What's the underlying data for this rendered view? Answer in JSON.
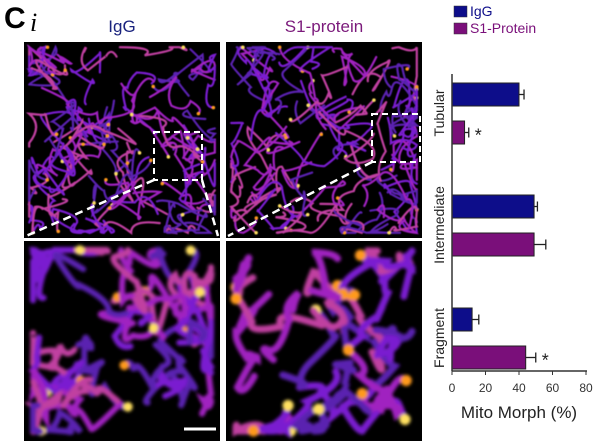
{
  "figure": {
    "panel_letter": "C",
    "panel_sub": "i",
    "columns": [
      {
        "label": "IgG",
        "color": "#1a237e"
      },
      {
        "label": "S1-protein",
        "color": "#7b1a7b"
      }
    ]
  },
  "chart_data": {
    "type": "bar",
    "orientation": "horizontal",
    "categories": [
      "Tubular",
      "Intermediate",
      "Fragment"
    ],
    "series": [
      {
        "name": "IgG",
        "color": "#0d0d8a",
        "values": [
          40,
          49,
          12
        ],
        "errors": [
          3,
          2,
          4
        ]
      },
      {
        "name": "S1-Protein",
        "color": "#7a0f7a",
        "values": [
          7.5,
          49,
          44
        ],
        "errors": [
          2.5,
          7,
          6
        ]
      }
    ],
    "significance": [
      {
        "category": "Tubular",
        "series": "S1-Protein",
        "mark": "*"
      },
      {
        "category": "Fragment",
        "series": "S1-Protein",
        "mark": "*"
      }
    ],
    "xlabel": "Mito Morph (%)",
    "xlim": [
      0,
      80
    ],
    "xticks": [
      "0",
      "20",
      "40",
      "60",
      "80"
    ],
    "legend_position": "top-right",
    "grid": false
  }
}
